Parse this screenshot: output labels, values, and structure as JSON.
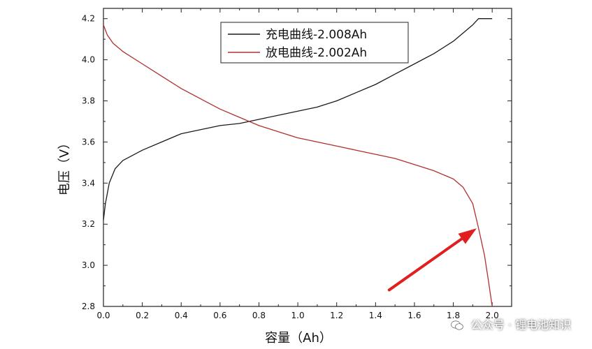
{
  "chart_data": {
    "type": "line",
    "title": "",
    "xlabel": "容量（Ah）",
    "ylabel": "电压（V）",
    "xlim": [
      0.0,
      2.1
    ],
    "ylim": [
      2.8,
      4.25
    ],
    "xticks": [
      "0.0",
      "0.2",
      "0.4",
      "0.6",
      "0.8",
      "1.0",
      "1.2",
      "1.4",
      "1.6",
      "1.8",
      "2.0"
    ],
    "yticks": [
      "2.8",
      "3.0",
      "3.2",
      "3.4",
      "3.6",
      "3.8",
      "4.0",
      "4.2"
    ],
    "legend_position": "top-center",
    "grid": false,
    "series": [
      {
        "name": "充电曲线-2.008Ah",
        "color": "#1a1a1a",
        "points": [
          [
            0.0,
            3.22
          ],
          [
            0.01,
            3.3
          ],
          [
            0.03,
            3.4
          ],
          [
            0.06,
            3.47
          ],
          [
            0.1,
            3.51
          ],
          [
            0.2,
            3.56
          ],
          [
            0.3,
            3.6
          ],
          [
            0.4,
            3.64
          ],
          [
            0.5,
            3.66
          ],
          [
            0.6,
            3.68
          ],
          [
            0.7,
            3.69
          ],
          [
            0.8,
            3.71
          ],
          [
            0.9,
            3.73
          ],
          [
            1.0,
            3.75
          ],
          [
            1.1,
            3.77
          ],
          [
            1.2,
            3.8
          ],
          [
            1.3,
            3.84
          ],
          [
            1.4,
            3.88
          ],
          [
            1.5,
            3.93
          ],
          [
            1.6,
            3.98
          ],
          [
            1.7,
            4.03
          ],
          [
            1.8,
            4.09
          ],
          [
            1.9,
            4.17
          ],
          [
            1.93,
            4.2
          ],
          [
            2.0,
            4.2
          ]
        ]
      },
      {
        "name": "放电曲线-2.002Ah",
        "color": "#b03030",
        "points": [
          [
            0.0,
            4.17
          ],
          [
            0.02,
            4.12
          ],
          [
            0.05,
            4.08
          ],
          [
            0.1,
            4.04
          ],
          [
            0.2,
            3.98
          ],
          [
            0.3,
            3.92
          ],
          [
            0.4,
            3.86
          ],
          [
            0.5,
            3.81
          ],
          [
            0.6,
            3.76
          ],
          [
            0.7,
            3.72
          ],
          [
            0.8,
            3.68
          ],
          [
            0.9,
            3.65
          ],
          [
            1.0,
            3.62
          ],
          [
            1.1,
            3.6
          ],
          [
            1.2,
            3.58
          ],
          [
            1.3,
            3.56
          ],
          [
            1.4,
            3.54
          ],
          [
            1.5,
            3.52
          ],
          [
            1.6,
            3.49
          ],
          [
            1.7,
            3.46
          ],
          [
            1.8,
            3.42
          ],
          [
            1.85,
            3.38
          ],
          [
            1.9,
            3.3
          ],
          [
            1.93,
            3.18
          ],
          [
            1.96,
            3.05
          ],
          [
            1.98,
            2.93
          ],
          [
            2.0,
            2.8
          ]
        ]
      }
    ],
    "annotation": {
      "type": "arrow",
      "color": "#e02020",
      "from": [
        1.47,
        2.88
      ],
      "to": [
        1.92,
        3.18
      ]
    }
  },
  "watermark": {
    "text": "公众号 · 锂电池知识"
  }
}
